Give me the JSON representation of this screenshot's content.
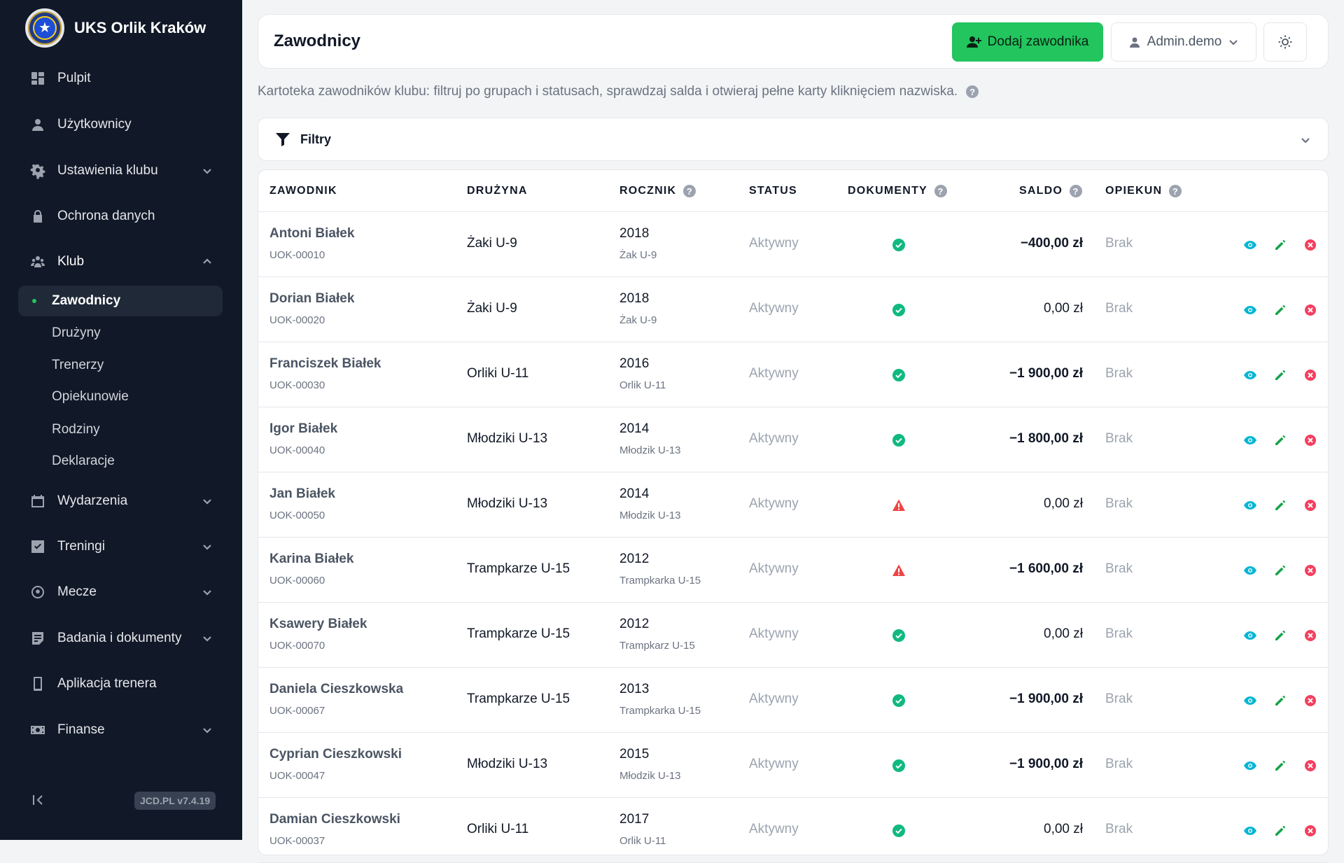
{
  "sidebar": {
    "brand": "UKS Orlik Kraków",
    "items": [
      {
        "label": "Pulpit"
      },
      {
        "label": "Użytkownicy"
      },
      {
        "label": "Ustawienia klubu"
      },
      {
        "label": "Ochrona danych"
      },
      {
        "label": "Klub"
      },
      {
        "label": "Wydarzenia"
      },
      {
        "label": "Treningi"
      },
      {
        "label": "Mecze"
      },
      {
        "label": "Badania i dokumenty"
      },
      {
        "label": "Aplikacja trenera"
      },
      {
        "label": "Finanse"
      }
    ],
    "club_sub": [
      {
        "label": "Zawodnicy",
        "active": true
      },
      {
        "label": "Drużyny"
      },
      {
        "label": "Trenerzy"
      },
      {
        "label": "Opiekunowie"
      },
      {
        "label": "Rodziny"
      },
      {
        "label": "Deklaracje"
      }
    ],
    "version": "JCD.PL v7.4.19"
  },
  "header": {
    "title": "Zawodnicy",
    "add_button": "Dodaj zawodnika",
    "user_button": "Admin.demo"
  },
  "description": "Kartoteka zawodników klubu: filtruj po grupach i statusach, sprawdzaj salda i otwieraj pełne karty kliknięciem nazwiska.",
  "filters": {
    "label": "Filtry"
  },
  "table": {
    "columns": {
      "player": "ZAWODNIK",
      "team": "DRUŻYNA",
      "year": "ROCZNIK",
      "status": "STATUS",
      "documents": "DOKUMENTY",
      "balance": "SALDO",
      "guardian": "OPIEKUN"
    },
    "rows": [
      {
        "name": "Antoni Białek",
        "code": "UOK-00010",
        "team": "Żaki U-9",
        "year": "2018",
        "category": "Żak U-9",
        "status": "Aktywny",
        "docs": "ok",
        "balance": "−400,00 zł",
        "negative": true,
        "guardian": "Brak"
      },
      {
        "name": "Dorian Białek",
        "code": "UOK-00020",
        "team": "Żaki U-9",
        "year": "2018",
        "category": "Żak U-9",
        "status": "Aktywny",
        "docs": "ok",
        "balance": "0,00 zł",
        "negative": false,
        "guardian": "Brak"
      },
      {
        "name": "Franciszek Białek",
        "code": "UOK-00030",
        "team": "Orliki U-11",
        "year": "2016",
        "category": "Orlik U-11",
        "status": "Aktywny",
        "docs": "ok",
        "balance": "−1 900,00 zł",
        "negative": true,
        "guardian": "Brak"
      },
      {
        "name": "Igor Białek",
        "code": "UOK-00040",
        "team": "Młodziki U-13",
        "year": "2014",
        "category": "Młodzik U-13",
        "status": "Aktywny",
        "docs": "ok",
        "balance": "−1 800,00 zł",
        "negative": true,
        "guardian": "Brak"
      },
      {
        "name": "Jan Białek",
        "code": "UOK-00050",
        "team": "Młodziki U-13",
        "year": "2014",
        "category": "Młodzik U-13",
        "status": "Aktywny",
        "docs": "warn",
        "balance": "0,00 zł",
        "negative": false,
        "guardian": "Brak"
      },
      {
        "name": "Karina Białek",
        "code": "UOK-00060",
        "team": "Trampkarze U-15",
        "year": "2012",
        "category": "Trampkarka U-15",
        "status": "Aktywny",
        "docs": "warn",
        "balance": "−1 600,00 zł",
        "negative": true,
        "guardian": "Brak"
      },
      {
        "name": "Ksawery Białek",
        "code": "UOK-00070",
        "team": "Trampkarze U-15",
        "year": "2012",
        "category": "Trampkarz U-15",
        "status": "Aktywny",
        "docs": "ok",
        "balance": "0,00 zł",
        "negative": false,
        "guardian": "Brak"
      },
      {
        "name": "Daniela Cieszkowska",
        "code": "UOK-00067",
        "team": "Trampkarze U-15",
        "year": "2013",
        "category": "Trampkarka U-15",
        "status": "Aktywny",
        "docs": "ok",
        "balance": "−1 900,00 zł",
        "negative": true,
        "guardian": "Brak"
      },
      {
        "name": "Cyprian Cieszkowski",
        "code": "UOK-00047",
        "team": "Młodziki U-13",
        "year": "2015",
        "category": "Młodzik U-13",
        "status": "Aktywny",
        "docs": "ok",
        "balance": "−1 900,00 zł",
        "negative": true,
        "guardian": "Brak"
      },
      {
        "name": "Damian Cieszkowski",
        "code": "UOK-00037",
        "team": "Orliki U-11",
        "year": "2017",
        "category": "Orlik U-11",
        "status": "Aktywny",
        "docs": "ok",
        "balance": "0,00 zł",
        "negative": false,
        "guardian": "Brak"
      }
    ]
  },
  "colors": {
    "sidebar_bg": "#111827",
    "primary_button": "#22c55e",
    "doc_ok": "#10b981",
    "doc_warn": "#ef4444",
    "action_view": "#06b6d4",
    "action_edit": "#16a34a",
    "action_delete": "#f43f5e"
  },
  "icons": {
    "nav": [
      "dashboard-icon",
      "user-icon",
      "gear-icon",
      "lock-icon",
      "users-icon",
      "calendar-icon",
      "checkbox-icon",
      "ball-icon",
      "document-icon",
      "phone-icon",
      "money-icon"
    ],
    "row_actions": [
      "eye-icon",
      "pencil-icon",
      "close-circle-icon"
    ]
  }
}
